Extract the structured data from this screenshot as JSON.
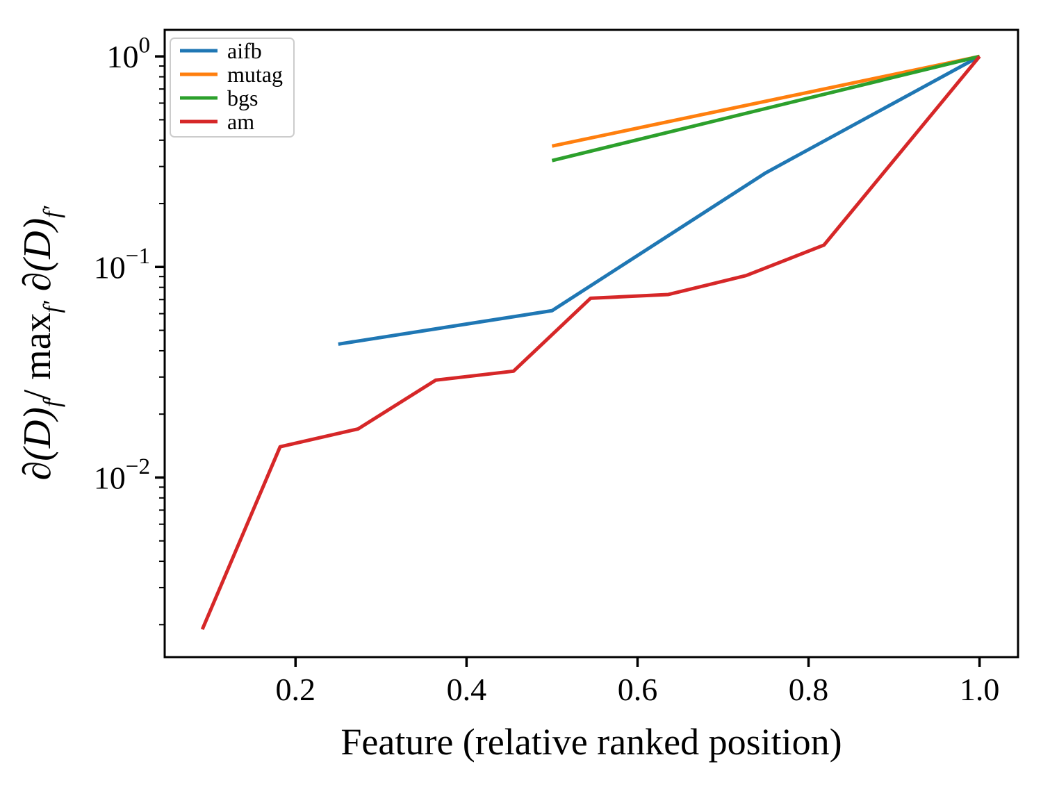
{
  "figure": {
    "background": "#ffffff",
    "ylabel": {
      "text": "∂(D)f / maxf′ ∂(D)f′",
      "parts": [
        {
          "text": "∂(D)",
          "italic": true,
          "sub": false
        },
        {
          "text": "f",
          "italic": true,
          "sub": true
        },
        {
          "text": "/",
          "italic": false,
          "sub": false
        },
        {
          "text": " max",
          "italic": false,
          "sub": false
        },
        {
          "text": "f′",
          "italic": true,
          "sub": true
        },
        {
          "text": " ∂(D)",
          "italic": true,
          "sub": false
        },
        {
          "text": "f′",
          "italic": true,
          "sub": true
        }
      ]
    }
  },
  "chart_data": {
    "type": "line",
    "title": "",
    "grid": false,
    "background": "#ffffff",
    "spine_color": "#000000",
    "x_axis": {
      "label": "Feature (relative ranked position)",
      "scale": "linear",
      "range": [
        0.047,
        1.045
      ],
      "ticks": [
        0.2,
        0.4,
        0.6,
        0.8,
        1.0
      ],
      "tick_labels": [
        "0.2",
        "0.4",
        "0.6",
        "0.8",
        "1.0"
      ]
    },
    "y_axis": {
      "label": "∂(D)f / maxf′ ∂(D)f′",
      "scale": "log",
      "ylim": [
        0.0014,
        1.34
      ],
      "log10_range": [
        -2.853,
        0.126
      ],
      "major_ticks": [
        1,
        0.1,
        0.01
      ],
      "tick_labels": [
        {
          "base": "10",
          "exp": "0"
        },
        {
          "base": "10",
          "exp": "−1"
        },
        {
          "base": "10",
          "exp": "−2"
        }
      ]
    },
    "legend": {
      "position": "upper-left",
      "border_color": "#cccccc",
      "fill": "#ffffff",
      "entries": [
        "aifb",
        "mutag",
        "bgs",
        "am"
      ]
    },
    "series": [
      {
        "name": "aifb",
        "color": "#1f77b4",
        "x": [
          0.25,
          0.5,
          0.75,
          1.0
        ],
        "y": [
          0.043,
          0.062,
          0.28,
          1.0
        ]
      },
      {
        "name": "mutag",
        "color": "#ff7f0e",
        "x": [
          0.5,
          1.0
        ],
        "y": [
          0.375,
          1.0
        ]
      },
      {
        "name": "bgs",
        "color": "#2ca02c",
        "x": [
          0.5,
          1.0
        ],
        "y": [
          0.32,
          1.0
        ]
      },
      {
        "name": "am",
        "color": "#d62728",
        "x": [
          0.091,
          0.182,
          0.273,
          0.364,
          0.455,
          0.545,
          0.636,
          0.727,
          0.818,
          1.0
        ],
        "y": [
          0.0019,
          0.014,
          0.017,
          0.029,
          0.032,
          0.071,
          0.074,
          0.091,
          0.127,
          1.0
        ]
      }
    ]
  }
}
